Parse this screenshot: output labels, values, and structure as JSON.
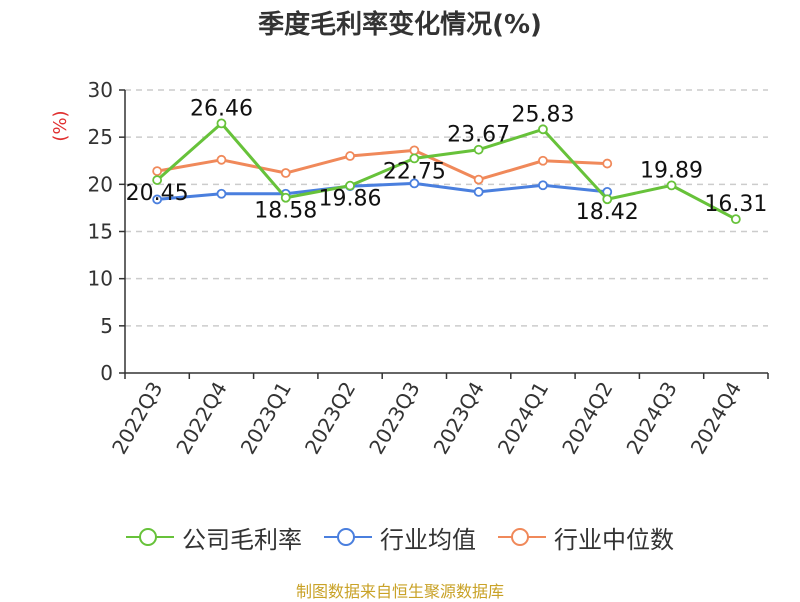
{
  "title": "季度毛利率变化情况(%)",
  "source_text": "制图数据来自恒生聚源数据库",
  "colors": {
    "company": "#67c23a",
    "industry_avg": "#4a7fde",
    "industry_median": "#f0895a",
    "axis": "#333333",
    "grid": "#cccccc",
    "ylabel": "#e03030",
    "source": "#c9a227"
  },
  "chart_data": {
    "type": "line",
    "title": "季度毛利率变化情况(%)",
    "xlabel": "",
    "ylabel": "(%)",
    "ylim": [
      0,
      30
    ],
    "yticks": [
      0,
      5,
      10,
      15,
      20,
      25,
      30
    ],
    "categories": [
      "2022Q3",
      "2022Q4",
      "2023Q1",
      "2023Q2",
      "2023Q3",
      "2023Q4",
      "2024Q1",
      "2024Q2",
      "2024Q3",
      "2024Q4"
    ],
    "grid": "horizontal dashed",
    "legend_position": "bottom",
    "series": [
      {
        "name": "公司毛利率",
        "key": "company",
        "values": [
          20.45,
          26.46,
          18.58,
          19.86,
          22.75,
          23.67,
          25.83,
          18.42,
          19.89,
          16.31
        ],
        "labels": [
          "20.45",
          "26.46",
          "18.58",
          "19.86",
          "22.75",
          "23.67",
          "25.83",
          "18.42",
          "19.89",
          "16.31"
        ]
      },
      {
        "name": "行业均值",
        "key": "industry_avg",
        "values": [
          18.4,
          19.0,
          19.0,
          19.8,
          20.1,
          19.2,
          19.9,
          19.2,
          null,
          null
        ]
      },
      {
        "name": "行业中位数",
        "key": "industry_median",
        "values": [
          21.4,
          22.6,
          21.2,
          23.0,
          23.6,
          20.5,
          22.5,
          22.2,
          null,
          null
        ]
      }
    ]
  }
}
